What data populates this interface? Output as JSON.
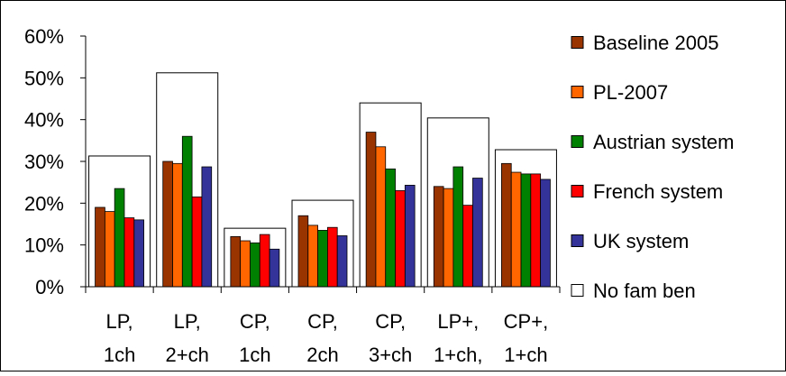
{
  "chart_data": {
    "type": "bar",
    "categories": [
      [
        "LP,",
        "1ch"
      ],
      [
        "LP,",
        "2+ch"
      ],
      [
        "CP,",
        "1ch"
      ],
      [
        "CP,",
        "2ch"
      ],
      [
        "CP,",
        "3+ch"
      ],
      [
        "LP+,",
        "1+ch,"
      ],
      [
        "CP+,",
        "1+ch"
      ]
    ],
    "series": [
      {
        "name": "Baseline 2005",
        "color": "#993300",
        "values": [
          0.19,
          0.3,
          0.12,
          0.17,
          0.37,
          0.24,
          0.295
        ]
      },
      {
        "name": "PL-2007",
        "color": "#FF6600",
        "values": [
          0.18,
          0.295,
          0.11,
          0.147,
          0.335,
          0.235,
          0.274
        ]
      },
      {
        "name": "Austrian system",
        "color": "#008000",
        "values": [
          0.235,
          0.36,
          0.105,
          0.135,
          0.282,
          0.287,
          0.27
        ]
      },
      {
        "name": "French system",
        "color": "#FF0000",
        "values": [
          0.165,
          0.215,
          0.125,
          0.142,
          0.23,
          0.195,
          0.27
        ]
      },
      {
        "name": "UK system",
        "color": "#333399",
        "values": [
          0.16,
          0.287,
          0.09,
          0.122,
          0.243,
          0.26,
          0.257
        ]
      }
    ],
    "reference": {
      "name": "No fam ben",
      "color": "#FFFFFF",
      "values": [
        0.313,
        0.512,
        0.14,
        0.207,
        0.44,
        0.404,
        0.328
      ]
    },
    "yticks": [
      "0%",
      "10%",
      "20%",
      "30%",
      "40%",
      "50%",
      "60%"
    ],
    "ylim": [
      0,
      0.6
    ],
    "grid": false,
    "legend": "right",
    "title": "",
    "xlabel": "",
    "ylabel": ""
  }
}
